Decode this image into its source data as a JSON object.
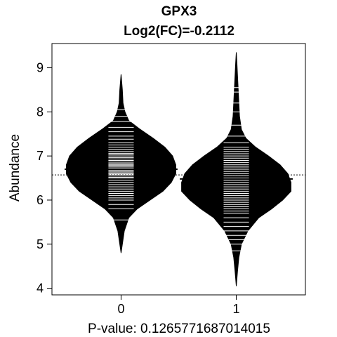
{
  "chart_data": {
    "type": "beanplot",
    "title": "GPX3",
    "subtitle": "Log2(FC)=-0.2112",
    "xlabel": "P-value: 0.1265771687014015",
    "ylabel": "Abundance",
    "categories": [
      "0",
      "1"
    ],
    "xlim": [
      -0.6,
      1.6
    ],
    "ylim": [
      3.85,
      9.55
    ],
    "yticks": [
      4,
      5,
      6,
      7,
      8,
      9
    ],
    "overall_mean": 6.57,
    "groups": [
      {
        "name": "0",
        "mean": 6.7,
        "min": 4.8,
        "max": 8.85,
        "density": [
          [
            4.8,
            0.0
          ],
          [
            5.0,
            0.02
          ],
          [
            5.3,
            0.05
          ],
          [
            5.6,
            0.12
          ],
          [
            5.8,
            0.25
          ],
          [
            6.0,
            0.45
          ],
          [
            6.2,
            0.65
          ],
          [
            6.4,
            0.78
          ],
          [
            6.6,
            0.85
          ],
          [
            6.8,
            0.85
          ],
          [
            7.0,
            0.8
          ],
          [
            7.2,
            0.68
          ],
          [
            7.4,
            0.5
          ],
          [
            7.6,
            0.3
          ],
          [
            7.8,
            0.12
          ],
          [
            8.0,
            0.06
          ],
          [
            8.2,
            0.03
          ],
          [
            8.5,
            0.02
          ],
          [
            8.85,
            0.0
          ]
        ],
        "points": [
          5.55,
          5.8,
          5.9,
          6.0,
          6.05,
          6.1,
          6.15,
          6.2,
          6.25,
          6.3,
          6.35,
          6.4,
          6.45,
          6.5,
          6.52,
          6.55,
          6.58,
          6.6,
          6.62,
          6.65,
          6.68,
          6.7,
          6.72,
          6.75,
          6.78,
          6.8,
          6.83,
          6.86,
          6.9,
          6.93,
          6.96,
          7.0,
          7.03,
          7.06,
          7.1,
          7.15,
          7.2,
          7.25,
          7.3,
          7.38,
          7.45,
          7.55,
          7.65,
          7.78,
          7.9,
          8.05
        ]
      },
      {
        "name": "1",
        "mean": 6.48,
        "min": 4.05,
        "max": 9.35,
        "density": [
          [
            4.05,
            0.0
          ],
          [
            4.4,
            0.02
          ],
          [
            4.7,
            0.04
          ],
          [
            5.0,
            0.08
          ],
          [
            5.3,
            0.18
          ],
          [
            5.6,
            0.35
          ],
          [
            5.8,
            0.55
          ],
          [
            6.0,
            0.72
          ],
          [
            6.2,
            0.85
          ],
          [
            6.4,
            0.85
          ],
          [
            6.6,
            0.8
          ],
          [
            6.8,
            0.68
          ],
          [
            7.0,
            0.5
          ],
          [
            7.2,
            0.3
          ],
          [
            7.4,
            0.15
          ],
          [
            7.6,
            0.08
          ],
          [
            7.9,
            0.05
          ],
          [
            8.2,
            0.04
          ],
          [
            8.5,
            0.03
          ],
          [
            8.8,
            0.02
          ],
          [
            9.1,
            0.01
          ],
          [
            9.35,
            0.0
          ]
        ],
        "points": [
          4.85,
          5.0,
          5.1,
          5.2,
          5.3,
          5.4,
          5.5,
          5.6,
          5.7,
          5.75,
          5.8,
          5.85,
          5.9,
          5.95,
          6.0,
          6.05,
          6.1,
          6.15,
          6.2,
          6.25,
          6.3,
          6.35,
          6.4,
          6.45,
          6.5,
          6.55,
          6.6,
          6.65,
          6.7,
          6.75,
          6.8,
          6.85,
          6.9,
          6.95,
          7.0,
          7.05,
          7.1,
          7.15,
          7.2,
          7.3,
          7.45,
          7.7,
          8.0,
          8.2,
          8.45,
          8.55
        ]
      }
    ]
  }
}
